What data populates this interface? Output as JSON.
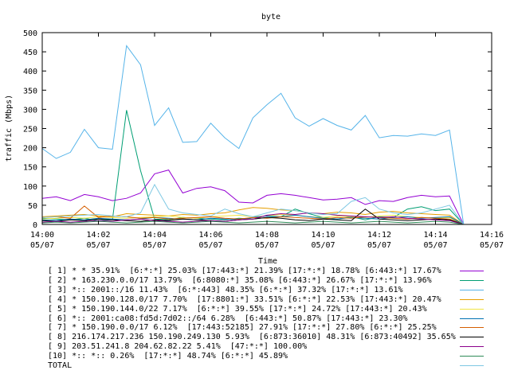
{
  "chart_data": {
    "type": "line",
    "title": "byte",
    "xlabel": "Time",
    "ylabel": "traffic (Mbps)",
    "ylim": [
      0,
      500
    ],
    "yticks": [
      "0",
      "50",
      "100",
      "150",
      "200",
      "250",
      "300",
      "350",
      "400",
      "450",
      "500"
    ],
    "xticks": [
      {
        "time": "14:00",
        "date": "05/07"
      },
      {
        "time": "14:02",
        "date": "05/07"
      },
      {
        "time": "14:04",
        "date": "05/07"
      },
      {
        "time": "14:06",
        "date": "05/07"
      },
      {
        "time": "14:08",
        "date": "05/07"
      },
      {
        "time": "14:10",
        "date": "05/07"
      },
      {
        "time": "14:12",
        "date": "05/07"
      },
      {
        "time": "14:14",
        "date": "05/07"
      },
      {
        "time": "14:16",
        "date": "05/07"
      }
    ],
    "x_minutes": [
      0,
      0.5,
      1,
      1.5,
      2,
      2.5,
      3,
      3.5,
      4,
      4.5,
      5,
      5.5,
      6,
      6.5,
      7,
      7.5,
      8,
      8.5,
      9,
      9.5,
      10,
      10.5,
      11,
      11.5,
      12,
      12.5,
      13,
      13.5,
      14,
      14.5,
      15
    ],
    "grid": false,
    "legend_placement": "bottom",
    "series": [
      {
        "name": "[ 1] * * 35.91%  [6:*:*] 25.03% [17:443:*] 21.39% [17:*:*] 18.78% [6:443:*] 17.67%",
        "color": "#9400d3",
        "values": [
          68,
          72,
          62,
          78,
          72,
          62,
          68,
          82,
          132,
          142,
          82,
          94,
          98,
          88,
          58,
          56,
          76,
          80,
          76,
          70,
          64,
          66,
          70,
          52,
          62,
          60,
          70,
          76,
          72,
          74,
          0
        ]
      },
      {
        "name": "[ 2] * 163.230.0.0/17 13.79%  [6:8080:*] 35.08% [6:443:*] 26.67% [17:*:*] 13.96%",
        "color": "#009e73",
        "values": [
          16,
          14,
          12,
          16,
          10,
          12,
          298,
          140,
          14,
          12,
          18,
          16,
          14,
          12,
          16,
          14,
          18,
          20,
          40,
          28,
          18,
          14,
          20,
          12,
          20,
          18,
          40,
          46,
          36,
          40,
          0
        ]
      },
      {
        "name": "[ 3] *:: 2001::/16 11.43%  [6:*:443] 48.35% [6:*:*] 37.32% [17:*:*] 13.61%",
        "color": "#56b4e9",
        "values": [
          198,
          172,
          188,
          248,
          200,
          196,
          466,
          416,
          258,
          304,
          214,
          216,
          264,
          226,
          198,
          278,
          312,
          342,
          278,
          256,
          276,
          258,
          246,
          284,
          226,
          232,
          230,
          236,
          232,
          246,
          0
        ]
      },
      {
        "name": "[ 4] * 150.190.128.0/17 7.70%  [17:8801:*] 33.51% [6:*:*] 22.53% [17:443:*] 20.47%",
        "color": "#e69f00",
        "values": [
          20,
          22,
          24,
          26,
          22,
          20,
          28,
          26,
          24,
          22,
          26,
          24,
          28,
          30,
          38,
          44,
          42,
          38,
          36,
          30,
          28,
          32,
          30,
          26,
          32,
          34,
          30,
          28,
          26,
          24,
          0
        ]
      },
      {
        "name": "[ 5] * 150.190.144.0/22 7.17%  [6:*:*] 39.55% [17:*:*] 24.72% [17:443:*] 20.43%",
        "color": "#f0e442",
        "values": [
          14,
          16,
          18,
          16,
          20,
          18,
          16,
          18,
          20,
          22,
          18,
          16,
          20,
          22,
          24,
          20,
          22,
          26,
          24,
          20,
          18,
          22,
          20,
          18,
          22,
          24,
          20,
          18,
          16,
          18,
          0
        ]
      },
      {
        "name": "[ 6] *:: 2001:ca08:fd5d:7d02::/64 6.28%  [6:443:*] 50.87% [17:443:*] 23.30%",
        "color": "#0072b2",
        "values": [
          12,
          10,
          14,
          12,
          16,
          14,
          12,
          14,
          18,
          16,
          14,
          12,
          16,
          14,
          12,
          18,
          22,
          20,
          24,
          20,
          16,
          14,
          18,
          16,
          14,
          18,
          20,
          16,
          18,
          20,
          0
        ]
      },
      {
        "name": "[ 7] * 150.190.0.0/17 6.12%  [17:443:52185] 27.91% [17:*:*] 27.80% [6:*:*] 25.25%",
        "color": "#d55e00",
        "values": [
          18,
          20,
          16,
          48,
          18,
          22,
          20,
          16,
          18,
          14,
          16,
          18,
          20,
          16,
          14,
          18,
          16,
          20,
          18,
          16,
          14,
          18,
          16,
          20,
          18,
          16,
          14,
          18,
          16,
          14,
          0
        ]
      },
      {
        "name": "[ 8] 216.174.217.236 150.190.249.130 5.93%  [6:873:36010] 48.31% [6:873:40492] 35.65%",
        "color": "#000000",
        "values": [
          10,
          8,
          12,
          10,
          14,
          12,
          10,
          8,
          12,
          10,
          14,
          12,
          10,
          8,
          12,
          14,
          18,
          16,
          12,
          10,
          14,
          12,
          10,
          40,
          14,
          12,
          10,
          12,
          14,
          12,
          0
        ]
      },
      {
        "name": "[ 9] 203.51.241.8 204.62.82.22 5.41%  [47:*:*] 100.00%",
        "color": "#8b008b",
        "values": [
          6,
          8,
          6,
          8,
          10,
          8,
          12,
          14,
          10,
          8,
          6,
          8,
          10,
          8,
          12,
          14,
          24,
          28,
          26,
          30,
          28,
          24,
          22,
          20,
          18,
          20,
          16,
          14,
          12,
          10,
          0
        ]
      },
      {
        "name": "[10] *:: *:: 0.26%  [17:*:*] 48.74% [6:*:*] 45.89%",
        "color": "#2e8b57",
        "values": [
          4,
          6,
          4,
          6,
          8,
          6,
          4,
          6,
          8,
          6,
          4,
          6,
          8,
          6,
          4,
          6,
          8,
          6,
          4,
          6,
          8,
          6,
          4,
          6,
          8,
          6,
          4,
          6,
          8,
          6,
          0
        ]
      },
      {
        "name": "TOTAL",
        "color": "#7ec8e3",
        "values": [
          18,
          20,
          22,
          24,
          26,
          22,
          20,
          30,
          104,
          40,
          30,
          26,
          22,
          40,
          28,
          20,
          30,
          40,
          36,
          30,
          26,
          28,
          60,
          70,
          40,
          30,
          26,
          30,
          40,
          50,
          0
        ]
      }
    ]
  }
}
